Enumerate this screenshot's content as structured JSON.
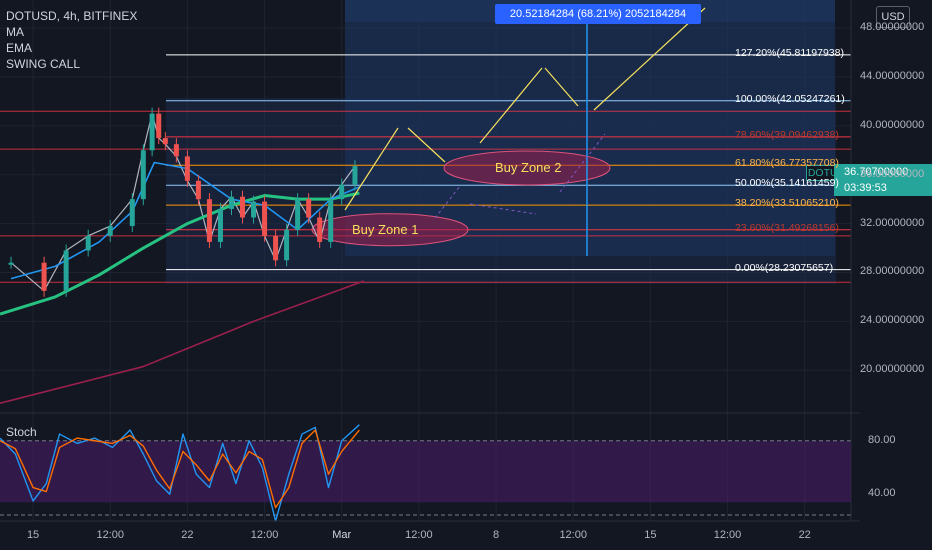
{
  "legend": {
    "symbol_line": "DOTUSD, 4h, BITFINEX",
    "indicators": [
      "MA",
      "EMA",
      "SWING CALL"
    ]
  },
  "currency_button": "USD",
  "measure_label": "20.52184284 (68.21%) 2052184284",
  "current_price": {
    "symbol": "DOTUSD",
    "price": "36.70700000",
    "countdown": "03:39:53",
    "color": "#26a69a"
  },
  "zones": [
    {
      "label": "Buy Zone 1",
      "center_price": 31.5
    },
    {
      "label": "Buy Zone 2",
      "center_price": 36.8
    }
  ],
  "stoch_label": "Stoch",
  "colors": {
    "background": "#131722",
    "fib_blue": "#2962ff",
    "fib_red": "#f23645",
    "fib_orange": "#ff9800",
    "ema_green": "#26c281",
    "ma_blue": "#2196f3",
    "long_ma": "#9c1f4e",
    "annotation_yellow": "#f6e05e",
    "zone_fill": "#9c1f4e",
    "stoch_fill": "#4a1e6b"
  },
  "chart_data": [
    {
      "type": "line",
      "title": "DOTUSD, 4h, BITFINEX",
      "xlabel": "",
      "ylabel": "",
      "y_unit": "USD",
      "ylim": [
        16.5,
        50.3
      ],
      "y_ticks": [
        "48.00000000",
        "44.00000000",
        "40.00000000",
        "36.00000000",
        "32.00000000",
        "28.00000000",
        "24.00000000",
        "20.00000000"
      ],
      "y_tick_values": [
        48,
        44,
        40,
        36,
        32,
        28,
        24,
        20
      ],
      "x_ticks": [
        "15",
        "12:00",
        "22",
        "12:00",
        "Mar",
        "12:00",
        "8",
        "12:00",
        "15",
        "12:00",
        "22"
      ],
      "x_tick_days": [
        0,
        3.5,
        7,
        10.5,
        14,
        17.5,
        21,
        24.5,
        28,
        31.5,
        35
      ],
      "x_span_days": [
        -1.5,
        37.1
      ],
      "grid": true,
      "fibonacci": [
        {
          "label": "127.20%",
          "value": "45.81197938",
          "price": 45.81197938
        },
        {
          "label": "100.00%",
          "value": "42.05247261",
          "price": 42.05247261
        },
        {
          "label": "78.60%",
          "value": "39.09462938",
          "price": 39.09462938
        },
        {
          "label": "61.80%",
          "value": "36.77357708",
          "price": 36.77357708
        },
        {
          "label": "50.00%",
          "value": "35.14161459",
          "price": 35.14161459
        },
        {
          "label": "38.20%",
          "value": "33.51065210",
          "price": 33.5106521
        },
        {
          "label": "23.60%",
          "value": "31.49268156",
          "price": 31.49268156
        },
        {
          "label": "0.00%",
          "value": "28.23075657",
          "price": 28.23075657
        }
      ],
      "series": [
        {
          "name": "Price",
          "x_days": [
            -1.0,
            0.5,
            1.5,
            2.5,
            3.5,
            4.5,
            5.0,
            5.4,
            5.7,
            6.0,
            6.5,
            7.0,
            7.5,
            8.0,
            8.5,
            9.0,
            9.5,
            10.0,
            10.5,
            11.0,
            11.5,
            12.0,
            12.5,
            13.0,
            13.5,
            14.0,
            14.6
          ],
          "values": [
            28.8,
            26.5,
            29.8,
            31.0,
            31.8,
            34.0,
            38.0,
            41.0,
            39.0,
            38.5,
            37.5,
            35.5,
            34.0,
            30.5,
            33.2,
            34.2,
            32.5,
            33.8,
            31.0,
            29.0,
            31.5,
            34.0,
            32.5,
            30.5,
            34.0,
            35.2,
            36.7
          ]
        },
        {
          "name": "EMA",
          "x_days": [
            -1.5,
            1.0,
            3.0,
            5.0,
            7.0,
            9.0,
            10.5,
            12.0,
            13.5,
            14.8
          ],
          "values": [
            24.6,
            26.0,
            27.8,
            30.0,
            32.0,
            33.5,
            34.3,
            34.0,
            34.0,
            34.5
          ]
        },
        {
          "name": "MA",
          "x_days": [
            -1.0,
            1.0,
            3.0,
            4.5,
            5.5,
            7.0,
            9.0,
            10.5,
            12.0,
            13.5,
            14.8
          ],
          "values": [
            27.5,
            28.5,
            30.5,
            33.0,
            37.0,
            36.5,
            34.0,
            33.5,
            31.5,
            34.0,
            35.0
          ]
        },
        {
          "name": "Long MA",
          "x_days": [
            -1.5,
            5.0,
            10.0,
            15.0
          ],
          "values": [
            17.3,
            20.3,
            24.0,
            27.3
          ]
        }
      ]
    },
    {
      "type": "line",
      "title": "Stoch",
      "ylim": [
        20,
        100
      ],
      "y_ticks": [
        "80.00",
        "40.00"
      ],
      "y_tick_values": [
        80,
        40
      ],
      "series": [
        {
          "name": "K",
          "x_days": [
            -1.5,
            -0.8,
            0.0,
            0.6,
            1.2,
            2.0,
            2.8,
            3.6,
            4.4,
            5.0,
            5.6,
            6.2,
            6.8,
            7.4,
            8.0,
            8.6,
            9.2,
            9.8,
            10.4,
            11.0,
            11.6,
            12.2,
            12.8,
            13.4,
            14.0,
            14.8
          ],
          "values": [
            82,
            70,
            35,
            48,
            85,
            78,
            82,
            75,
            88,
            70,
            50,
            40,
            85,
            55,
            45,
            78,
            48,
            80,
            60,
            20,
            55,
            85,
            90,
            45,
            80,
            92
          ]
        },
        {
          "name": "D",
          "x_days": [
            -1.5,
            -0.8,
            0.0,
            0.6,
            1.2,
            2.0,
            2.8,
            3.6,
            4.4,
            5.0,
            5.6,
            6.2,
            6.8,
            7.4,
            8.0,
            8.6,
            9.2,
            9.8,
            10.4,
            11.0,
            11.6,
            12.2,
            12.8,
            13.4,
            14.0,
            14.8
          ],
          "values": [
            80,
            74,
            45,
            42,
            75,
            82,
            80,
            78,
            84,
            76,
            58,
            44,
            72,
            62,
            50,
            70,
            56,
            72,
            66,
            30,
            45,
            78,
            88,
            55,
            72,
            88
          ]
        }
      ]
    }
  ]
}
